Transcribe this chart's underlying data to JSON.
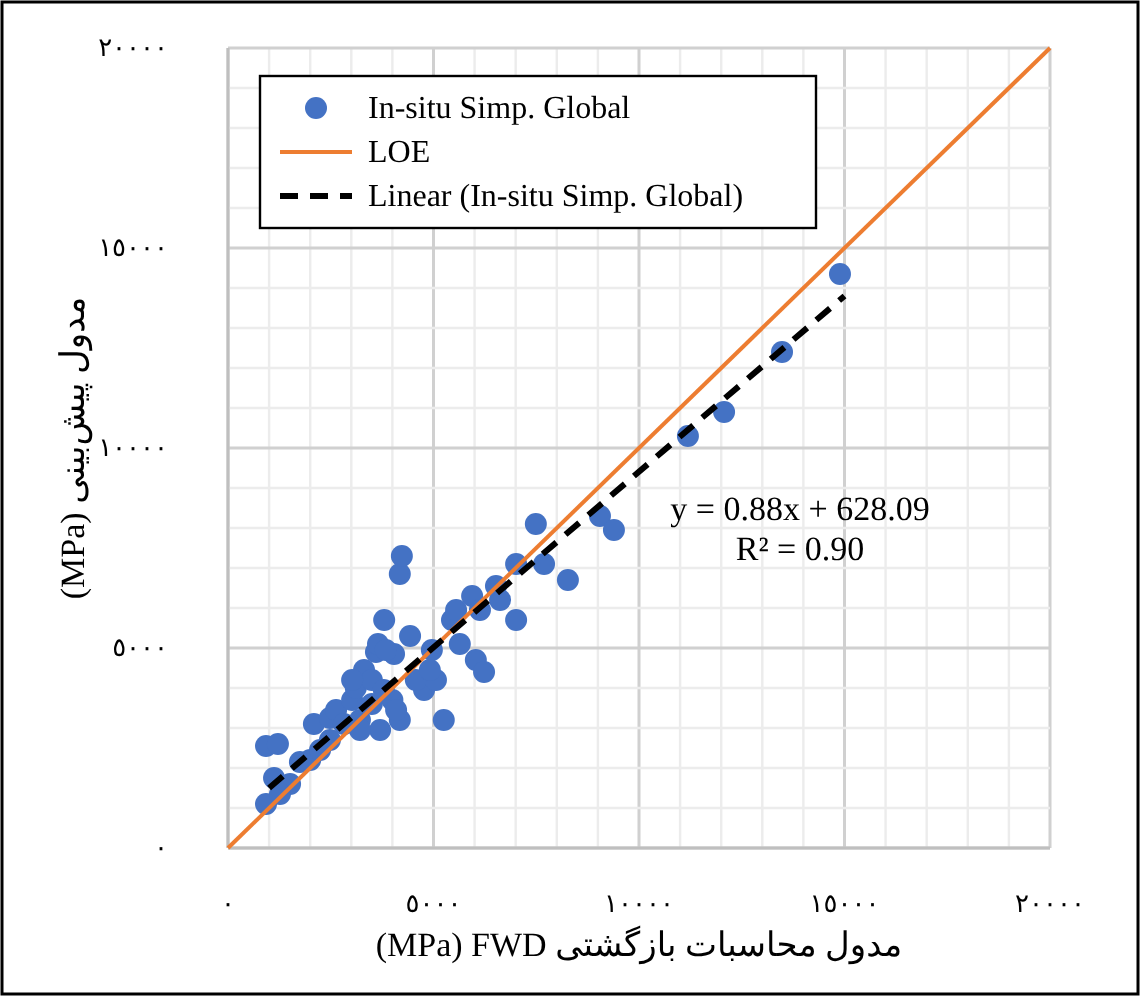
{
  "chart_data": {
    "type": "scatter",
    "xlabel": "(MPa) FWD مدول محاسبات بازگشتی",
    "ylabel": "(MPa) مدول پیش‌بینی",
    "xlim": [
      0,
      20000
    ],
    "ylim": [
      0,
      20000
    ],
    "xticks": [
      {
        "value": 0,
        "label": "٠"
      },
      {
        "value": 1000,
        "label": null
      },
      {
        "value": 2000,
        "label": null
      },
      {
        "value": 3000,
        "label": null
      },
      {
        "value": 4000,
        "label": null
      },
      {
        "value": 5000,
        "label": "٥٠٠٠"
      },
      {
        "value": 6000,
        "label": null
      },
      {
        "value": 7000,
        "label": null
      },
      {
        "value": 8000,
        "label": null
      },
      {
        "value": 9000,
        "label": null
      },
      {
        "value": 10000,
        "label": "١٠٠٠٠"
      },
      {
        "value": 11000,
        "label": null
      },
      {
        "value": 12000,
        "label": null
      },
      {
        "value": 13000,
        "label": null
      },
      {
        "value": 14000,
        "label": null
      },
      {
        "value": 15000,
        "label": "١٥٠٠٠"
      },
      {
        "value": 16000,
        "label": null
      },
      {
        "value": 17000,
        "label": null
      },
      {
        "value": 18000,
        "label": null
      },
      {
        "value": 19000,
        "label": null
      },
      {
        "value": 20000,
        "label": "٢٠٠٠٠"
      }
    ],
    "yticks": [
      {
        "value": 0,
        "label": "٠"
      },
      {
        "value": 1000,
        "label": null
      },
      {
        "value": 2000,
        "label": null
      },
      {
        "value": 3000,
        "label": null
      },
      {
        "value": 4000,
        "label": null
      },
      {
        "value": 5000,
        "label": "٥٠٠٠"
      },
      {
        "value": 6000,
        "label": null
      },
      {
        "value": 7000,
        "label": null
      },
      {
        "value": 8000,
        "label": null
      },
      {
        "value": 9000,
        "label": null
      },
      {
        "value": 10000,
        "label": "١٠٠٠٠"
      },
      {
        "value": 11000,
        "label": null
      },
      {
        "value": 12000,
        "label": null
      },
      {
        "value": 13000,
        "label": null
      },
      {
        "value": 14000,
        "label": null
      },
      {
        "value": 15000,
        "label": "١٥٠٠٠"
      },
      {
        "value": 16000,
        "label": null
      },
      {
        "value": 17000,
        "label": null
      },
      {
        "value": 18000,
        "label": null
      },
      {
        "value": 19000,
        "label": null
      },
      {
        "value": 20000,
        "label": "٢٠٠٠٠"
      }
    ],
    "grid": true,
    "legend": "top",
    "annotations": [
      "y = 0.88x + 628.09",
      "R² = 0.90"
    ],
    "series": [
      {
        "name": "In-situ Simp. Global",
        "type": "scatter",
        "color": "#4472c4",
        "marker": "circle",
        "x": [
          925,
          1120,
          925,
          1215,
          1510,
          1265,
          1750,
          2000,
          2090,
          2480,
          2630,
          2820,
          3020,
          3210,
          3110,
          3310,
          3500,
          3600,
          3800,
          3650,
          4040,
          4180,
          4230,
          3840,
          4180,
          3700,
          3210,
          4000,
          4090,
          4430,
          4770,
          5060,
          5250,
          4960,
          5450,
          5550,
          5940,
          6130,
          6030,
          6230,
          6520,
          6620,
          7010,
          7010,
          7490,
          7690,
          8270,
          9050,
          9390,
          11190,
          12070,
          13480,
          14890,
          3020,
          3500,
          2480,
          2240,
          4570,
          4910,
          5640,
          3790
        ],
        "values": [
          1100,
          1750,
          2550,
          2600,
          1600,
          1350,
          2150,
          2200,
          3100,
          3250,
          3450,
          3100,
          3700,
          3200,
          4000,
          4450,
          4200,
          4900,
          5700,
          5100,
          4850,
          6850,
          7300,
          4950,
          3200,
          2950,
          2950,
          3700,
          3450,
          5300,
          3950,
          4200,
          3200,
          4950,
          5700,
          5950,
          6300,
          5950,
          4700,
          4400,
          6550,
          6200,
          5700,
          7100,
          8100,
          7100,
          6700,
          8300,
          7950,
          10300,
          10900,
          12400,
          14350,
          4200,
          3600,
          2700,
          2450,
          4200,
          4450,
          5100,
          3950
        ]
      },
      {
        "name": "LOE",
        "type": "line",
        "color": "#ed7d31",
        "line_style": "solid",
        "x": [
          0,
          20000
        ],
        "values": [
          0,
          20000
        ]
      },
      {
        "name": "Linear (In-situ Simp. Global)",
        "type": "line",
        "color": "#000000",
        "line_style": "dashed",
        "x": [
          1000,
          15000
        ],
        "values": [
          1500,
          13800
        ]
      }
    ]
  }
}
